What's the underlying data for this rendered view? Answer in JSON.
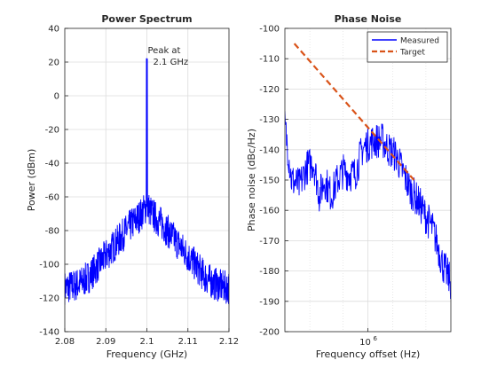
{
  "chart_data": [
    {
      "type": "line",
      "title": "Power Spectrum",
      "xlabel": "Frequency (GHz)",
      "ylabel": "Power (dBm)",
      "xlim": [
        2.08,
        2.12
      ],
      "ylim": [
        -140,
        40
      ],
      "xticks": [
        "2.08",
        "2.09",
        "2.1",
        "2.11",
        "2.12"
      ],
      "yticks": [
        "40",
        "20",
        "0",
        "-20",
        "-40",
        "-60",
        "-80",
        "-100",
        "-120",
        "-140"
      ],
      "grid": true,
      "series": [
        {
          "color": "#0000ff",
          "x": [
            2.08,
            2.082,
            2.084,
            2.086,
            2.088,
            2.09,
            2.092,
            2.094,
            2.096,
            2.098,
            2.099,
            2.0995,
            2.0999,
            2.1,
            2.1001,
            2.1005,
            2.101,
            2.102,
            2.104,
            2.106,
            2.108,
            2.11,
            2.112,
            2.114,
            2.116,
            2.118,
            2.12
          ],
          "values": [
            -114,
            -113,
            -111,
            -107,
            -101,
            -95,
            -89,
            -83,
            -77,
            -72,
            -69,
            -67,
            -66,
            22,
            -66,
            -67,
            -69,
            -72,
            -77,
            -83,
            -89,
            -95,
            -101,
            -107,
            -111,
            -113,
            -114
          ]
        }
      ],
      "annotations": [
        {
          "text": "Peak at",
          "x": 2.1,
          "y": 22
        },
        {
          "text": "2.1 GHz",
          "x": 2.1,
          "y": 22
        }
      ]
    },
    {
      "type": "line",
      "title": "Phase Noise",
      "xlabel": "Frequency offset (Hz)",
      "ylabel": "Phase noise (dBc/Hz)",
      "xscale": "log",
      "xlim": [
        100000,
        10000000
      ],
      "ylim": [
        -200,
        -100
      ],
      "xticks": [
        {
          "base": "10",
          "exp": "6",
          "value": 1000000
        }
      ],
      "yticks": [
        "-100",
        "-110",
        "-120",
        "-130",
        "-140",
        "-150",
        "-160",
        "-170",
        "-180",
        "-190",
        "-200"
      ],
      "grid": true,
      "legend_position": "top-right",
      "series": [
        {
          "name": "Measured",
          "color": "#0000ff",
          "style": "solid",
          "x": [
            100000,
            120000,
            150000,
            180000,
            220000,
            260000,
            300000,
            360000,
            430000,
            500000,
            600000,
            700000,
            850000,
            1000000,
            1200000,
            1500000,
            1800000,
            2200000,
            2600000,
            3200000,
            4000000,
            5000000,
            6000000,
            7000000,
            8000000,
            10000000
          ],
          "values": [
            -132,
            -150,
            -152,
            -146,
            -144,
            -155,
            -150,
            -155,
            -150,
            -147,
            -148,
            -148,
            -140,
            -138,
            -137,
            -137,
            -140,
            -142,
            -147,
            -153,
            -157,
            -162,
            -166,
            -172,
            -178,
            -184
          ]
        },
        {
          "name": "Target",
          "color": "#d95319",
          "style": "dashed",
          "x": [
            130000,
            3600000
          ],
          "values": [
            -105,
            -150
          ]
        }
      ]
    }
  ]
}
